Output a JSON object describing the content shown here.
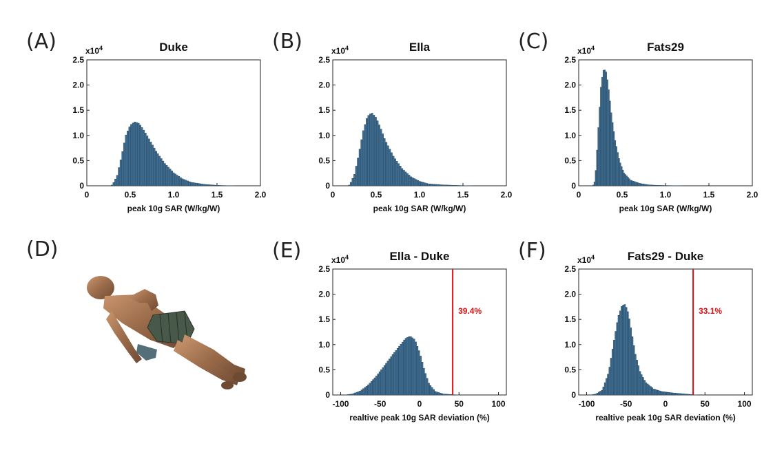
{
  "figure_illustration": {
    "label": "(D)",
    "subject": "anatomical human body model lying supine with coil array on the lower torso"
  },
  "colors": {
    "bar_fill": "#3e6b8e",
    "bar_edge": "#24445c",
    "threshold_line": "#e01010",
    "annotation_text": "#e01010"
  },
  "chart_data": [
    {
      "panel": "(A)",
      "type": "bar",
      "title": "Duke",
      "xlabel": "peak 10g SAR (W/kg/W)",
      "ylabel": "",
      "y_multiplier": "x10^4",
      "xlim": [
        0,
        2.0
      ],
      "ylim": [
        0,
        2.5
      ],
      "x_ticks": [
        "0",
        "0.5",
        "1.0",
        "1.5",
        "2.0"
      ],
      "y_ticks": [
        "0",
        "0.5",
        "1.0",
        "1.5",
        "2.0",
        "2.5"
      ],
      "bins": {
        "x": [
          0.28,
          0.3,
          0.35,
          0.4,
          0.45,
          0.5,
          0.55,
          0.6,
          0.65,
          0.7,
          0.8,
          0.9,
          1.0,
          1.1,
          1.2,
          1.35,
          1.5,
          1.7
        ],
        "y": [
          0,
          0.03,
          0.2,
          0.58,
          1.0,
          1.2,
          1.27,
          1.24,
          1.12,
          0.98,
          0.68,
          0.44,
          0.26,
          0.14,
          0.07,
          0.03,
          0.01,
          0
        ]
      }
    },
    {
      "panel": "(B)",
      "type": "bar",
      "title": "Ella",
      "xlabel": "peak 10g SAR (W/kg/W)",
      "ylabel": "",
      "y_multiplier": "x10^4",
      "xlim": [
        0,
        2.0
      ],
      "ylim": [
        0,
        2.5
      ],
      "x_ticks": [
        "0",
        "0.5",
        "1.0",
        "1.5",
        "2.0"
      ],
      "y_ticks": [
        "0",
        "0.5",
        "1.0",
        "1.5",
        "2.0",
        "2.5"
      ],
      "bins": {
        "x": [
          0.18,
          0.2,
          0.25,
          0.3,
          0.35,
          0.4,
          0.45,
          0.5,
          0.55,
          0.6,
          0.7,
          0.8,
          0.9,
          1.0,
          1.1,
          1.25,
          1.4,
          1.6
        ],
        "y": [
          0,
          0.03,
          0.22,
          0.62,
          1.08,
          1.38,
          1.45,
          1.35,
          1.15,
          0.92,
          0.58,
          0.34,
          0.18,
          0.09,
          0.04,
          0.02,
          0.01,
          0
        ]
      }
    },
    {
      "panel": "(C)",
      "type": "bar",
      "title": "Fats29",
      "xlabel": "peak 10g SAR (W/kg/W)",
      "ylabel": "",
      "y_multiplier": "x10^4",
      "xlim": [
        0,
        2.0
      ],
      "ylim": [
        0,
        2.5
      ],
      "x_ticks": [
        "0",
        "0.5",
        "1.0",
        "1.5",
        "2.0"
      ],
      "y_ticks": [
        "0",
        "0.5",
        "1.0",
        "1.5",
        "2.0",
        "2.5"
      ],
      "bins": {
        "x": [
          0.16,
          0.18,
          0.2,
          0.23,
          0.26,
          0.29,
          0.32,
          0.35,
          0.38,
          0.42,
          0.47,
          0.52,
          0.6,
          0.7,
          0.8,
          0.9,
          1.05,
          1.2
        ],
        "y": [
          0,
          0.04,
          0.35,
          1.25,
          2.05,
          2.33,
          2.25,
          1.85,
          1.38,
          0.9,
          0.5,
          0.26,
          0.11,
          0.05,
          0.02,
          0.01,
          0.005,
          0
        ]
      }
    },
    {
      "panel": "(E)",
      "type": "bar",
      "title": "Ella - Duke",
      "xlabel": "realtive peak 10g SAR deviation (%)",
      "ylabel": "",
      "y_multiplier": "x10^4",
      "xlim": [
        -110,
        110
      ],
      "ylim": [
        0,
        2.5
      ],
      "x_ticks": [
        "-100",
        "-50",
        "0",
        "50",
        "100"
      ],
      "y_ticks": [
        "0",
        "0.5",
        "1.0",
        "1.5",
        "2.0",
        "2.5"
      ],
      "bins": {
        "x": [
          -95,
          -85,
          -75,
          -65,
          -55,
          -45,
          -35,
          -25,
          -18,
          -12,
          -6,
          0,
          6,
          12,
          20,
          30,
          40,
          50
        ],
        "y": [
          0,
          0.02,
          0.08,
          0.2,
          0.37,
          0.57,
          0.78,
          0.98,
          1.12,
          1.17,
          1.1,
          0.85,
          0.5,
          0.22,
          0.07,
          0.02,
          0.01,
          0
        ]
      },
      "threshold": {
        "x": 42,
        "label": "39.4%"
      }
    },
    {
      "panel": "(F)",
      "type": "bar",
      "title": "Fats29 - Duke",
      "xlabel": "realtive peak 10g SAR deviation (%)",
      "ylabel": "",
      "y_multiplier": "x10^4",
      "xlim": [
        -110,
        110
      ],
      "ylim": [
        0,
        2.5
      ],
      "x_ticks": [
        "-100",
        "-50",
        "0",
        "50",
        "100"
      ],
      "y_ticks": [
        "0",
        "0.5",
        "1.0",
        "1.5",
        "2.0",
        "2.5"
      ],
      "bins": {
        "x": [
          -95,
          -88,
          -80,
          -72,
          -65,
          -60,
          -55,
          -51,
          -47,
          -43,
          -38,
          -32,
          -25,
          -15,
          -5,
          10,
          25,
          40
        ],
        "y": [
          0,
          0.02,
          0.1,
          0.45,
          1.1,
          1.55,
          1.78,
          1.8,
          1.62,
          1.25,
          0.8,
          0.45,
          0.25,
          0.12,
          0.07,
          0.04,
          0.02,
          0
        ]
      },
      "threshold": {
        "x": 35,
        "label": "33.1%"
      }
    }
  ]
}
